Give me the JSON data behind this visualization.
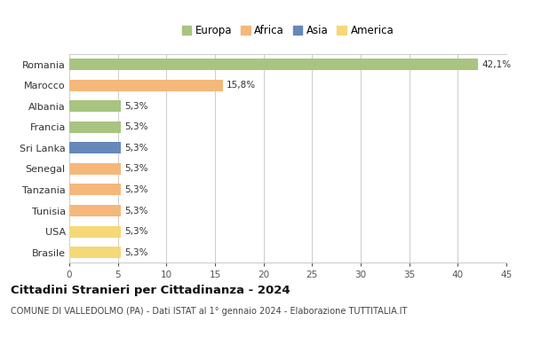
{
  "countries": [
    "Romania",
    "Marocco",
    "Albania",
    "Francia",
    "Sri Lanka",
    "Senegal",
    "Tanzania",
    "Tunisia",
    "USA",
    "Brasile"
  ],
  "values": [
    42.1,
    15.8,
    5.3,
    5.3,
    5.3,
    5.3,
    5.3,
    5.3,
    5.3,
    5.3
  ],
  "labels": [
    "42,1%",
    "15,8%",
    "5,3%",
    "5,3%",
    "5,3%",
    "5,3%",
    "5,3%",
    "5,3%",
    "5,3%",
    "5,3%"
  ],
  "colors": [
    "#a8c480",
    "#f5b87a",
    "#a8c480",
    "#a8c480",
    "#6688bb",
    "#f5b87a",
    "#f5b87a",
    "#f5b87a",
    "#f5d878",
    "#f5d878"
  ],
  "legend_labels": [
    "Europa",
    "Africa",
    "Asia",
    "America"
  ],
  "legend_colors": [
    "#a8c480",
    "#f5b87a",
    "#6688bb",
    "#f5d878"
  ],
  "title": "Cittadini Stranieri per Cittadinanza - 2024",
  "subtitle": "COMUNE DI VALLEDOLMO (PA) - Dati ISTAT al 1° gennaio 2024 - Elaborazione TUTTITALIA.IT",
  "xlim": [
    0,
    45
  ],
  "xticks": [
    0,
    5,
    10,
    15,
    20,
    25,
    30,
    35,
    40,
    45
  ],
  "bg_color": "#ffffff",
  "grid_color": "#cccccc",
  "bar_height": 0.55
}
